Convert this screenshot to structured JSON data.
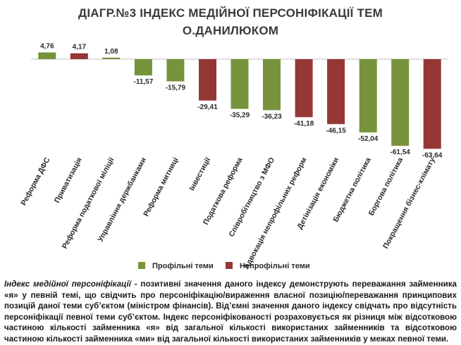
{
  "title_lines": [
    "ДІАГР.№3 ІНДЕКС МЕДІЙНОЇ ПЕРСОНІФІКАЦІЇ ТЕМ",
    "О.ДАНИЛЮКОМ"
  ],
  "caption": {
    "lead": "Індекс медійної персоніфікації",
    "body": " - позитивні значення даного індексу демонструють переважання займенника «я» у певній темі, що свідчить про персоніфікацію/вираження власної позицію/переважання принципових позицій даної теми суб’єктом (міністром фінансів). Від’ємні значення даного індексу свідчать про відсутність персоніфікації певної теми суб’єктом. Індекс персоніфікованості розраховується як різниця між відсотковою частиною кількості займенника «я» від загальної кількості використаних займенників та відсотковою частиною кількості займенника «ми» від загальної кількості використаних займенників у межах певної теми."
  },
  "colors": {
    "profile": "#77933c",
    "nonprofile": "#953735"
  },
  "chart_data": {
    "type": "bar",
    "title": "ДІАГР.№3 ІНДЕКС МЕДІЙНОЇ ПЕРСОНІФІКАЦІЇ ТЕМ О.ДАНИЛЮКОМ",
    "categories": [
      "Реформа ДФС",
      "Приватизація",
      "Реформа податкової міліції",
      "Управління держбанками",
      "Реформа митниці",
      "Інвестиції",
      "Податкова реформа",
      "Співробітництво з МФО",
      "Адвокація непрофільних реформ",
      "Детінізація економіки",
      "Бюджетна політика",
      "Боргова політика",
      "Покращення бізнес-клімату"
    ],
    "values": [
      4.76,
      4.17,
      1.08,
      -11.57,
      -15.79,
      -29.41,
      -35.29,
      -36.23,
      -41.18,
      -46.15,
      -52.04,
      -61.54,
      -63.64
    ],
    "value_labels": [
      "4,76",
      "4,17",
      "1,08",
      "-11,57",
      "-15,79",
      "-29,41",
      "-35,29",
      "-36,23",
      "-41,18",
      "-46,15",
      "-52,04",
      "-61,54",
      "-63,64"
    ],
    "groups": [
      "profile",
      "nonprofile",
      "profile",
      "profile",
      "profile",
      "nonprofile",
      "profile",
      "profile",
      "nonprofile",
      "nonprofile",
      "profile",
      "profile",
      "nonprofile"
    ],
    "legend": [
      {
        "key": "profile",
        "label": "Профільні теми"
      },
      {
        "key": "nonprofile",
        "label": "Непрофільні теми"
      }
    ],
    "legend_position": "bottom",
    "grid": false
  }
}
